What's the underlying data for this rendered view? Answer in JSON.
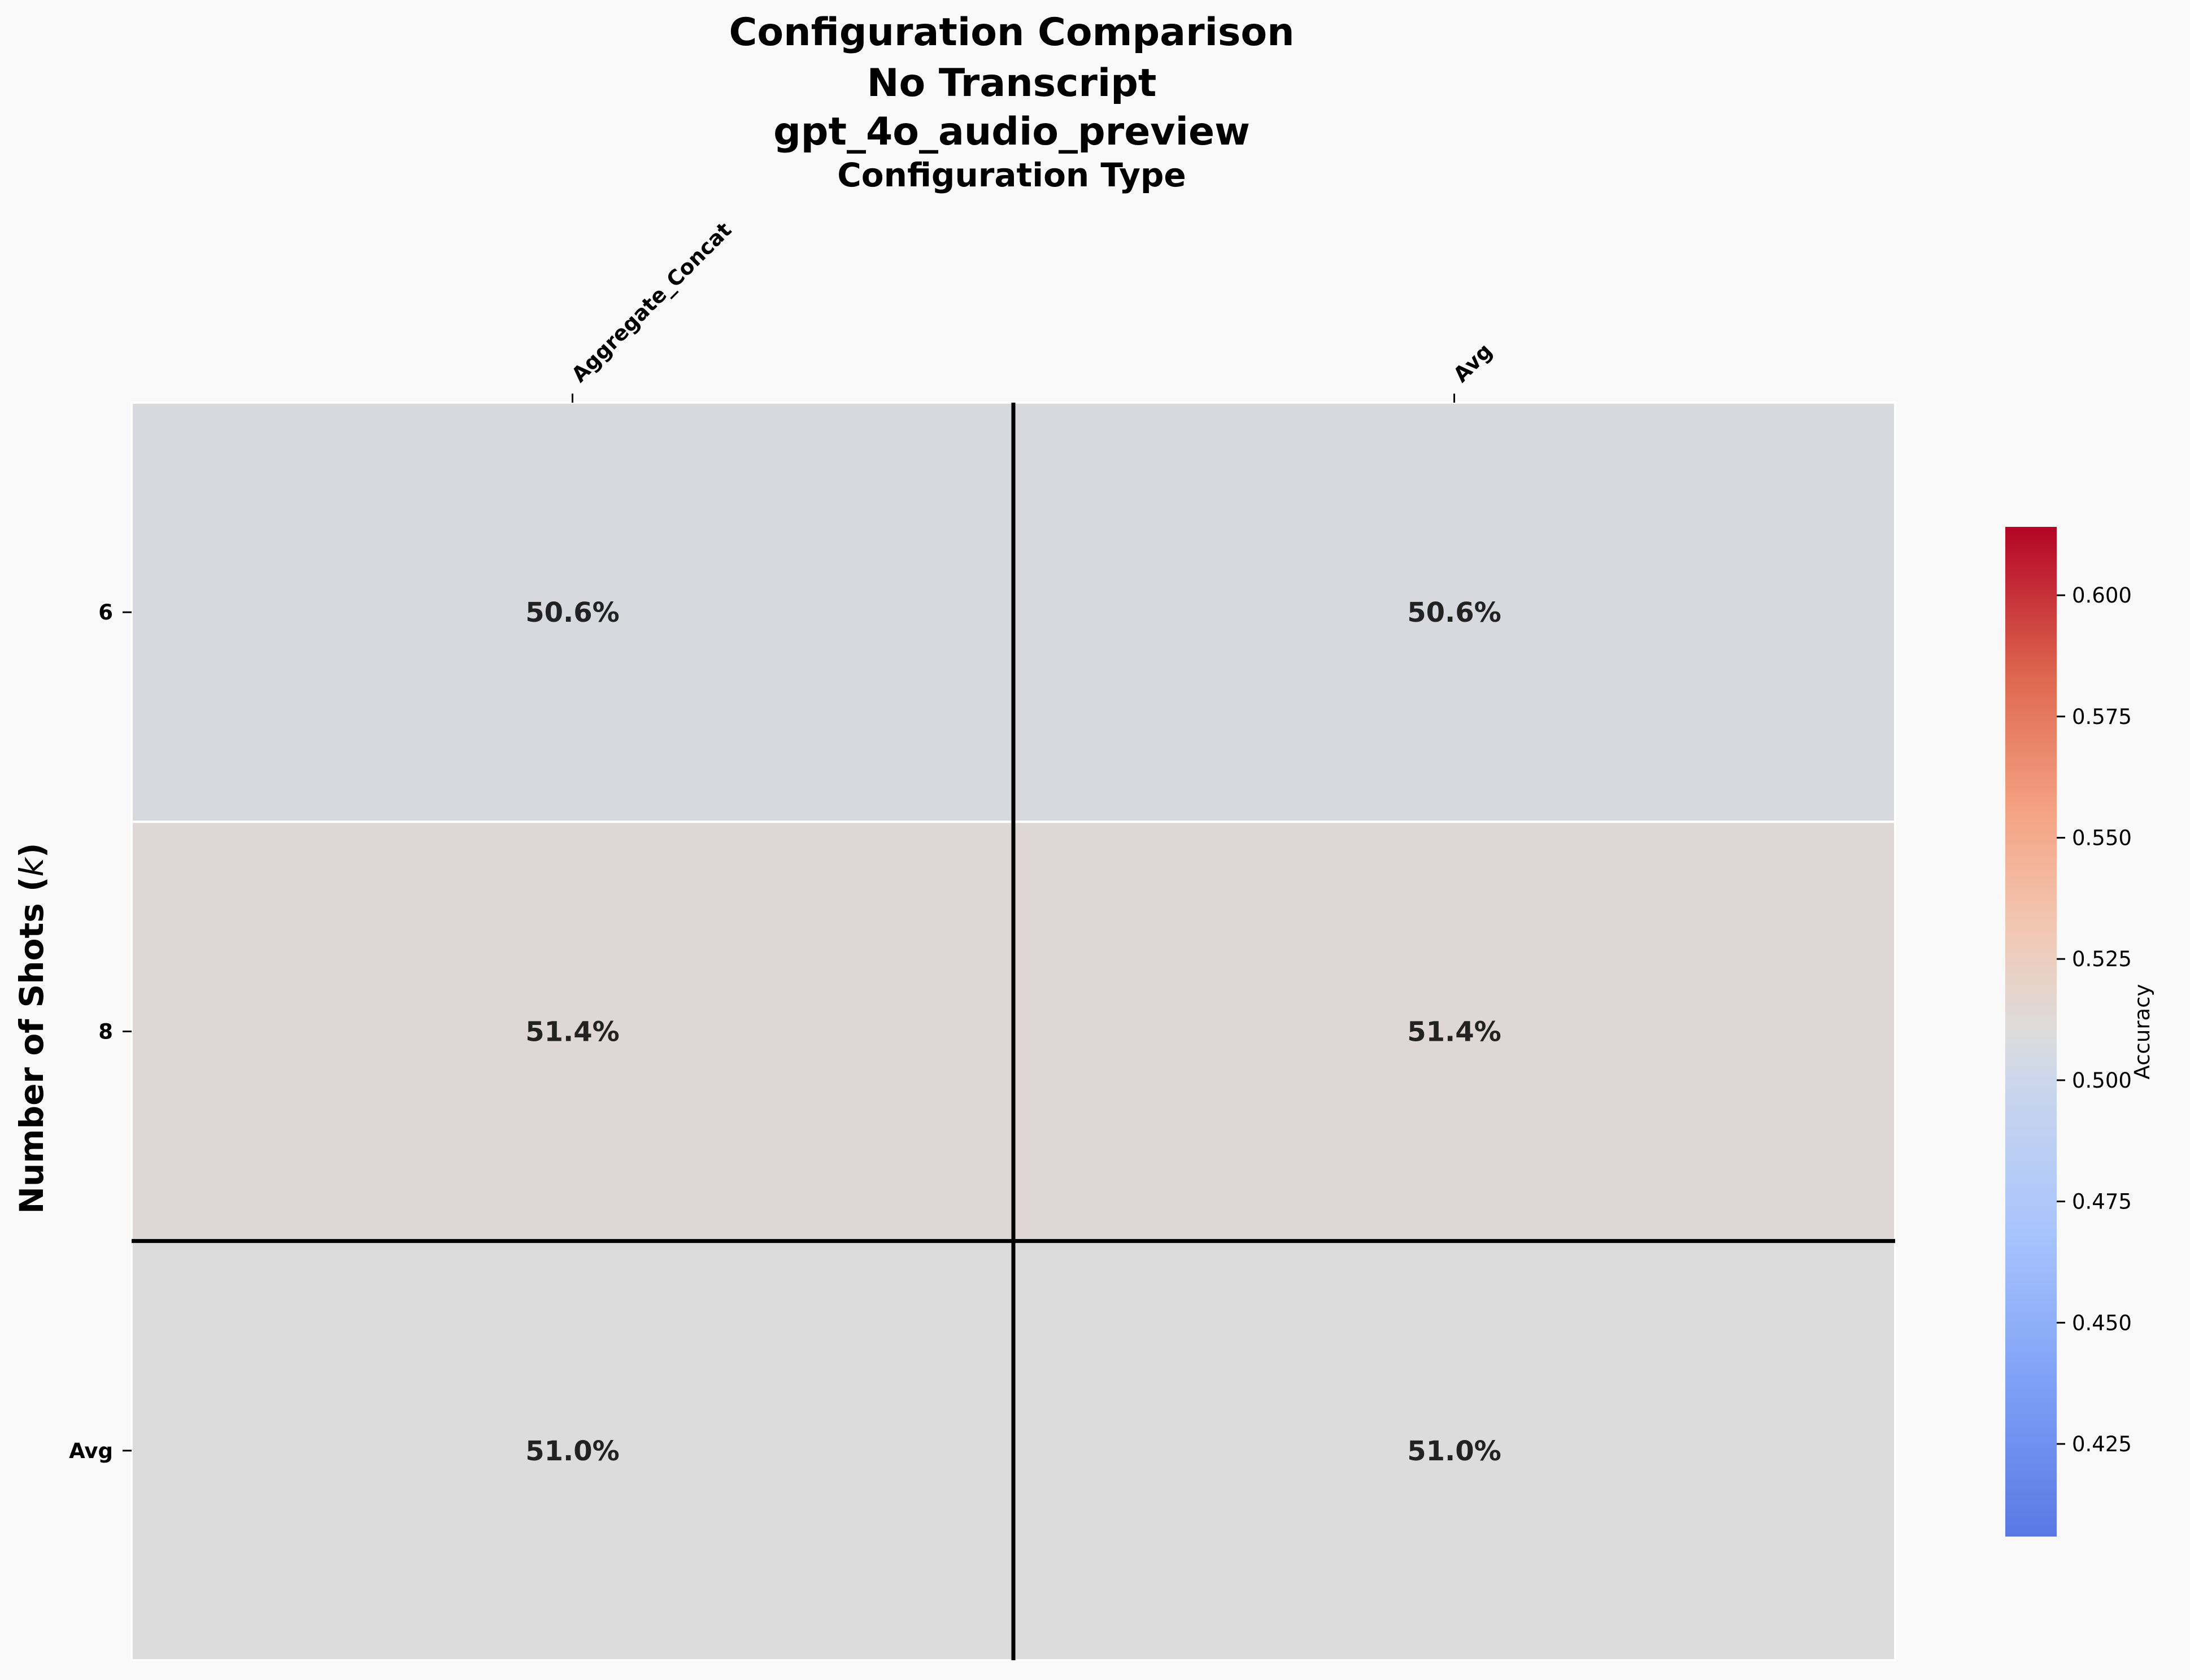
{
  "chart_data": {
    "type": "heatmap",
    "title_lines": [
      "Configuration Comparison",
      "No Transcript",
      "gpt_4o_audio_preview"
    ],
    "xlabel": "Configuration Type",
    "ylabel": "Number of Shots ($k$)",
    "x_categories": [
      "Aggregate_Concat",
      "Avg"
    ],
    "y_categories": [
      "6",
      "8",
      "Avg"
    ],
    "values": [
      [
        0.506,
        0.506
      ],
      [
        0.514,
        0.514
      ],
      [
        0.51,
        0.51
      ]
    ],
    "cell_labels": [
      [
        "50.6%",
        "50.6%"
      ],
      [
        "51.4%",
        "51.4%"
      ],
      [
        "51.0%",
        "51.0%"
      ]
    ],
    "colormap": "coolwarm",
    "vmin": 0.4059,
    "vmax": 0.6141,
    "colorbar": {
      "label": "Accuracy",
      "ticks": [
        "0.425",
        "0.450",
        "0.475",
        "0.500",
        "0.525",
        "0.550",
        "0.575",
        "0.600"
      ]
    },
    "separator_lines": {
      "vertical_after_column": 1,
      "horizontal_after_row": 2
    },
    "colors": {
      "background": "#f9f9f9",
      "separator": "#000000",
      "cell_border": "#ffffff",
      "text": "#222222",
      "colormap_low": "#3b4cc0",
      "colormap_mid": "#dddddd",
      "colormap_high": "#b40426"
    }
  }
}
